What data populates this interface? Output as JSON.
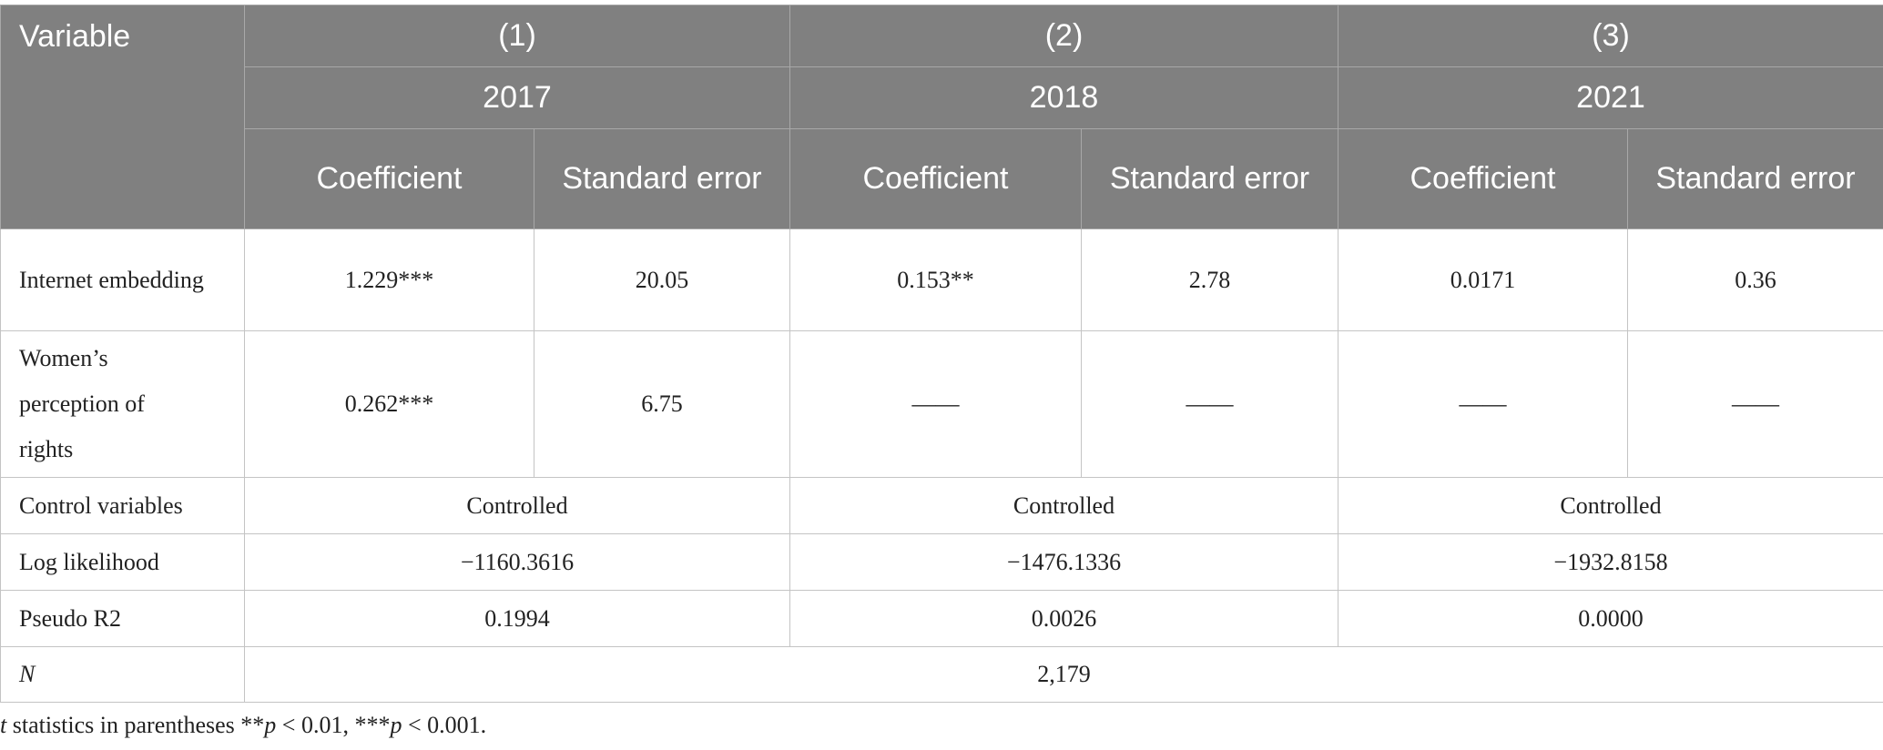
{
  "table": {
    "header": {
      "variable": "Variable",
      "models": [
        "(1)",
        "(2)",
        "(3)"
      ],
      "years": [
        "2017",
        "2018",
        "2021"
      ],
      "stats": [
        "Coefficient",
        "Standard error",
        "Coefficient",
        "Standard error",
        "Coefficient",
        "Standard error"
      ]
    },
    "rows": [
      [
        "Internet embedding",
        "1.229***",
        "20.05",
        "0.153**",
        "2.78",
        "0.0171",
        "0.36"
      ],
      [
        "Women’s perception of rights",
        "0.262***",
        "6.75",
        "——",
        "——",
        "——",
        "——"
      ],
      [
        "Control variables",
        "Controlled",
        "Controlled",
        "Controlled"
      ],
      [
        "Log likelihood",
        "−1160.3616",
        "−1476.1336",
        "−1932.8158"
      ],
      [
        "Pseudo R2",
        "0.1994",
        "0.0026",
        "0.0000"
      ],
      [
        "N",
        "2,179"
      ]
    ]
  },
  "footnote": [
    "t",
    " statistics in parentheses **",
    "p",
    " < 0.01, ***",
    "p",
    " < 0.001."
  ]
}
